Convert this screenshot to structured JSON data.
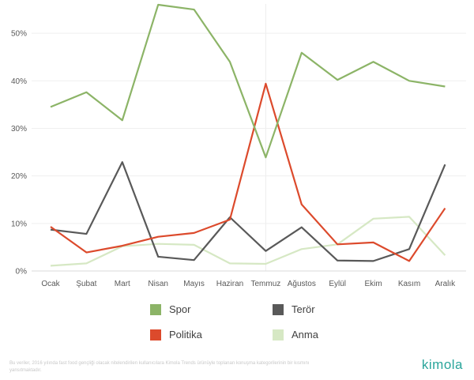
{
  "chart_data": {
    "type": "line",
    "categories": [
      "Ocak",
      "Şubat",
      "Mart",
      "Nisan",
      "Mayıs",
      "Haziran",
      "Temmuz",
      "Ağustos",
      "Eylül",
      "Ekim",
      "Kasım",
      "Aralık"
    ],
    "yticks": [
      "0%",
      "10%",
      "20%",
      "30%",
      "40%",
      "50%"
    ],
    "ylim": [
      0,
      57
    ],
    "grid": true,
    "series": [
      {
        "name": "Spor",
        "color": "#8cb467",
        "values": [
          34.5,
          37.6,
          31.7,
          56.0,
          55.0,
          44.0,
          23.9,
          45.9,
          40.2,
          44.0,
          40.0,
          38.8
        ]
      },
      {
        "name": "Politika",
        "color": "#dc4a2c",
        "values": [
          9.3,
          3.9,
          5.3,
          7.2,
          8.0,
          10.8,
          39.4,
          14.0,
          5.6,
          6.0,
          2.1,
          13.2
        ]
      },
      {
        "name": "Terör",
        "color": "#595959",
        "values": [
          8.7,
          7.8,
          22.9,
          3.0,
          2.3,
          11.3,
          4.2,
          9.2,
          2.2,
          2.1,
          4.6,
          22.4
        ]
      },
      {
        "name": "Anma",
        "color": "#d6e8c4",
        "values": [
          1.1,
          1.6,
          5.2,
          5.7,
          5.5,
          1.6,
          1.5,
          4.6,
          5.6,
          11.0,
          11.4,
          3.3
        ]
      }
    ],
    "legend_position": "bottom"
  },
  "legend": [
    {
      "label": "Spor",
      "color": "#8cb467"
    },
    {
      "label": "Terör",
      "color": "#595959"
    },
    {
      "label": "Politika",
      "color": "#dc4a2c"
    },
    {
      "label": "Anma",
      "color": "#d6e8c4"
    }
  ],
  "footnote": "Bu veriler, 2016 yılında fast food gençliği olacak nitelendirilen kullanıcılara Kimola Trends ürünüyle toplanan konuşma kategorilerinin bir kısmını yansıtmaktadır.",
  "brand": "kimola"
}
